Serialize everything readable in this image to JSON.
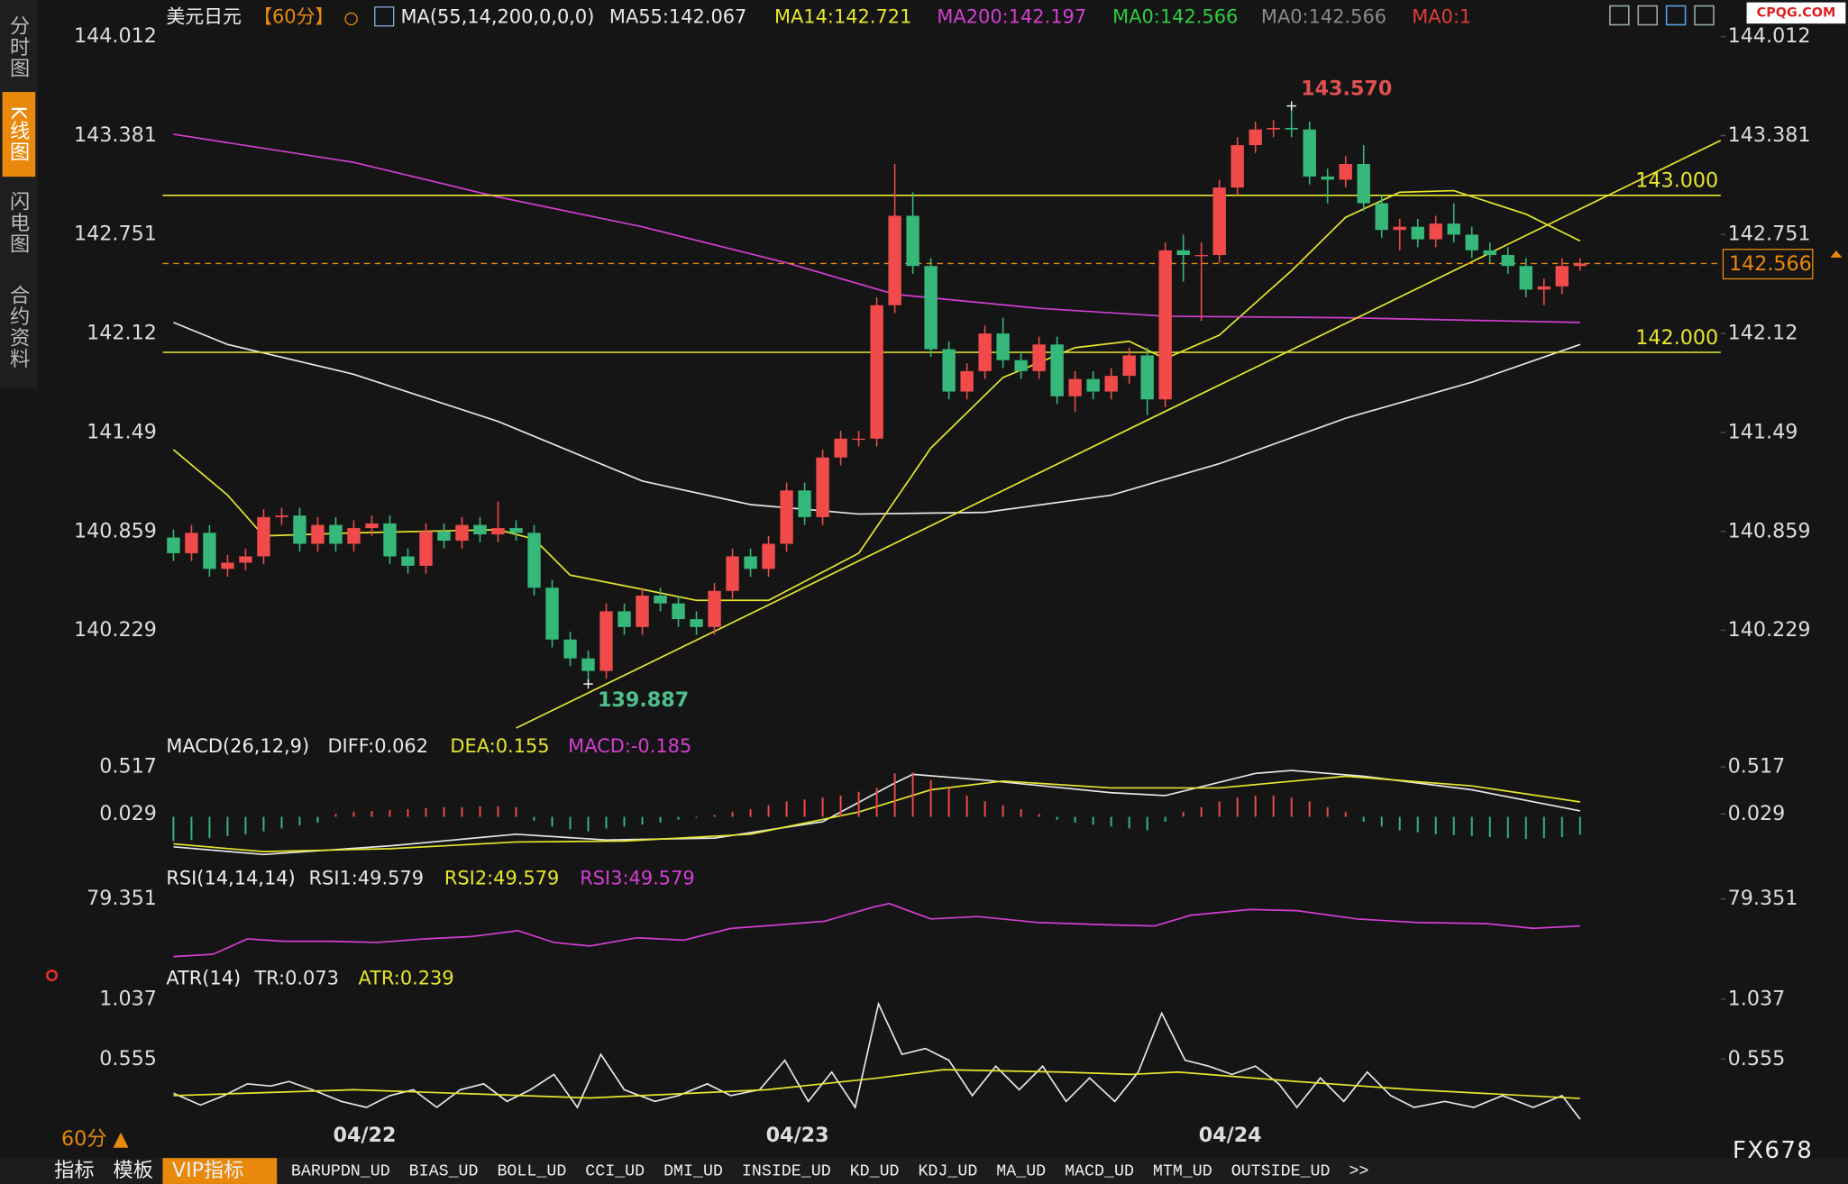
{
  "sidebar": [
    "分时图",
    "K线图",
    "闪电图",
    "合约资料"
  ],
  "header": {
    "symbol": "美元日元",
    "period": "【60分】",
    "indicator": "MA(55,14,200,0,0,0)",
    "logo": "CPQG.COM"
  },
  "chart_data": [
    {
      "type": "candlestick",
      "up_color": "#f04a4a",
      "down_color": "#35b87a",
      "open": [
        140.82,
        140.72,
        140.85,
        140.62,
        140.66,
        140.7,
        140.95,
        140.96,
        140.78,
        140.9,
        140.78,
        140.88,
        140.91,
        140.7,
        140.64,
        140.86,
        140.8,
        140.9,
        140.84,
        140.88,
        140.85,
        140.5,
        140.17,
        140.05,
        139.97,
        140.35,
        140.25,
        140.45,
        140.4,
        140.3,
        140.25,
        140.48,
        140.7,
        140.62,
        140.78,
        141.12,
        140.95,
        141.33,
        141.45,
        141.45,
        142.3,
        142.87,
        142.55,
        142.02,
        141.75,
        141.88,
        142.12,
        141.95,
        141.88,
        142.05,
        141.72,
        141.83,
        141.75,
        141.85,
        141.98,
        141.7,
        142.65,
        142.62,
        142.62,
        143.05,
        143.32,
        143.42,
        143.43,
        143.42,
        143.12,
        143.1,
        143.2,
        142.95,
        142.78,
        142.8,
        142.72,
        142.82,
        142.75,
        142.65,
        142.62,
        142.55,
        142.4,
        142.42,
        142.55
      ],
      "high": [
        140.87,
        140.9,
        140.9,
        140.71,
        140.75,
        141.0,
        141.01,
        141.01,
        140.95,
        140.95,
        140.93,
        140.96,
        140.96,
        140.75,
        140.91,
        140.91,
        140.95,
        140.95,
        141.05,
        140.93,
        140.9,
        140.55,
        140.22,
        140.1,
        140.4,
        140.4,
        140.5,
        140.5,
        140.45,
        140.35,
        140.53,
        140.75,
        140.75,
        140.83,
        141.17,
        141.17,
        141.38,
        141.5,
        141.5,
        142.35,
        143.2,
        143.02,
        142.6,
        142.07,
        141.93,
        142.17,
        142.22,
        142.0,
        142.1,
        142.1,
        141.88,
        141.88,
        141.9,
        142.03,
        142.03,
        142.7,
        142.75,
        142.7,
        143.1,
        143.37,
        143.47,
        143.48,
        143.57,
        143.47,
        143.17,
        143.25,
        143.32,
        143.0,
        142.85,
        142.85,
        142.87,
        142.95,
        142.8,
        142.7,
        142.67,
        142.6,
        142.47,
        142.6,
        142.6
      ],
      "low": [
        140.67,
        140.67,
        140.57,
        140.57,
        140.61,
        140.65,
        140.9,
        140.73,
        140.73,
        140.73,
        140.73,
        140.83,
        140.65,
        140.59,
        140.59,
        140.75,
        140.75,
        140.79,
        140.79,
        140.8,
        140.45,
        140.12,
        140.0,
        139.887,
        139.92,
        140.2,
        140.2,
        140.35,
        140.25,
        140.2,
        140.2,
        140.43,
        140.57,
        140.57,
        140.73,
        140.9,
        140.9,
        141.28,
        141.4,
        141.4,
        142.25,
        142.5,
        141.97,
        141.7,
        141.7,
        141.83,
        141.9,
        141.83,
        141.83,
        141.67,
        141.62,
        141.7,
        141.7,
        141.8,
        141.6,
        141.65,
        142.45,
        142.2,
        142.57,
        143.0,
        143.27,
        143.37,
        143.37,
        143.07,
        142.95,
        143.05,
        142.9,
        142.73,
        142.65,
        142.67,
        142.67,
        142.7,
        142.6,
        142.57,
        142.5,
        142.35,
        142.3,
        142.37,
        142.52
      ],
      "close": [
        140.72,
        140.85,
        140.62,
        140.66,
        140.7,
        140.95,
        140.96,
        140.78,
        140.9,
        140.78,
        140.88,
        140.91,
        140.7,
        140.64,
        140.86,
        140.8,
        140.9,
        140.84,
        140.88,
        140.85,
        140.5,
        140.17,
        140.05,
        139.97,
        140.35,
        140.25,
        140.45,
        140.4,
        140.3,
        140.25,
        140.48,
        140.7,
        140.62,
        140.78,
        141.12,
        140.95,
        141.33,
        141.45,
        141.45,
        142.3,
        142.87,
        142.55,
        142.02,
        141.75,
        141.88,
        142.12,
        141.95,
        141.88,
        142.05,
        141.72,
        141.83,
        141.75,
        141.85,
        141.98,
        141.7,
        142.65,
        142.62,
        142.62,
        143.05,
        143.32,
        143.42,
        143.43,
        143.42,
        143.12,
        143.1,
        143.2,
        142.95,
        142.78,
        142.8,
        142.72,
        142.82,
        142.75,
        142.65,
        142.62,
        142.55,
        142.4,
        142.42,
        142.55,
        142.566
      ],
      "xlim": [
        -0.6,
        85.8
      ],
      "ylim": [
        139.591,
        144.057
      ],
      "yticks": [
        144.012,
        143.381,
        142.751,
        142.12,
        141.49,
        140.859,
        140.229
      ],
      "xticks": [
        {
          "value": 10.6,
          "label": "04/22"
        },
        {
          "value": 34.6,
          "label": "04/23"
        },
        {
          "value": 58.6,
          "label": "04/24"
        }
      ],
      "series": [
        {
          "name": "MA55:142.067",
          "color": "#e6e6e6",
          "x": [
            0,
            3,
            10,
            18,
            26,
            32,
            38,
            45,
            52,
            58,
            65,
            72,
            78
          ],
          "values": [
            142.19,
            142.05,
            141.86,
            141.56,
            141.18,
            141.03,
            140.97,
            140.98,
            141.09,
            141.29,
            141.58,
            141.81,
            142.05
          ]
        },
        {
          "name": "MA14:142.721",
          "color": "#e6e62e",
          "x": [
            0,
            3,
            5,
            10,
            18,
            20,
            22,
            26,
            29,
            33,
            38,
            42,
            46,
            50,
            53,
            55,
            58,
            62,
            65,
            68,
            71,
            75,
            78
          ],
          "values": [
            141.38,
            141.09,
            140.83,
            140.85,
            140.87,
            140.81,
            140.58,
            140.49,
            140.42,
            140.42,
            140.72,
            141.39,
            141.84,
            142.03,
            142.07,
            141.96,
            142.11,
            142.52,
            142.86,
            143.02,
            143.03,
            142.88,
            142.71
          ]
        },
        {
          "name": "MA200:142.197",
          "color": "#d23fd2",
          "x": [
            0,
            10,
            18,
            26,
            34,
            40,
            48,
            55,
            65,
            78
          ],
          "values": [
            143.39,
            143.21,
            142.99,
            142.8,
            142.57,
            142.37,
            142.28,
            142.23,
            142.22,
            142.19
          ]
        }
      ],
      "other_legend": [
        {
          "name": "MA0:142.566",
          "color": "#2ecc40"
        },
        {
          "name": "MA0:142.566",
          "color": "#8a8a8a"
        },
        {
          "name": "MA0:1",
          "color": "#e03c3c"
        }
      ],
      "hlines": [
        {
          "value": 143,
          "label": "143.000",
          "color": "#e6e62e"
        },
        {
          "value": 142,
          "label": "142.000",
          "color": "#e6e62e"
        }
      ],
      "last_price": 142.566,
      "trendline": {
        "x": [
          19.0,
          85.8
        ],
        "values": [
          139.606,
          143.35
        ],
        "color": "#e6e62e"
      },
      "annotations": [
        {
          "x": 62,
          "value": 143.57,
          "label": "143.570",
          "color": "#e05050"
        },
        {
          "x": 23,
          "value": 139.887,
          "color": "#4fc08d"
        }
      ]
    },
    {
      "type": "macd",
      "title": "MACD(26,12,9)",
      "ylim": [
        -0.447,
        0.651
      ],
      "yticks": [
        0.517,
        0.029
      ],
      "up_color": "#f04a4a",
      "down_color": "#35b87a",
      "series": [
        {
          "name": "DIFF:0.062",
          "color": "#e6e6e6",
          "x": [
            0,
            5,
            12,
            19,
            24,
            30,
            36,
            40,
            41,
            45,
            52,
            55,
            60,
            62,
            66,
            72,
            78
          ],
          "values": [
            -0.31,
            -0.39,
            -0.3,
            -0.18,
            -0.24,
            -0.22,
            -0.05,
            0.35,
            0.44,
            0.38,
            0.25,
            0.22,
            0.45,
            0.48,
            0.42,
            0.28,
            0.062
          ]
        },
        {
          "name": "DEA:0.155",
          "color": "#e6e62e",
          "x": [
            0,
            5,
            12,
            19,
            25,
            32,
            38,
            42,
            46,
            52,
            58,
            65,
            72,
            78
          ],
          "values": [
            -0.28,
            -0.36,
            -0.33,
            -0.26,
            -0.25,
            -0.18,
            0.05,
            0.28,
            0.37,
            0.3,
            0.3,
            0.42,
            0.32,
            0.155
          ]
        },
        {
          "name": "MACD:-0.185",
          "color": "#d23fd2",
          "values": [
            -0.25,
            -0.24,
            -0.22,
            -0.2,
            -0.18,
            -0.15,
            -0.12,
            -0.09,
            -0.06,
            0.03,
            0.05,
            0.06,
            0.07,
            0.08,
            0.09,
            0.1,
            0.1,
            0.11,
            0.11,
            0.1,
            -0.04,
            -0.1,
            -0.13,
            -0.15,
            -0.12,
            -0.1,
            -0.08,
            -0.06,
            -0.03,
            -0.01,
            0.02,
            0.05,
            0.08,
            0.12,
            0.16,
            0.18,
            0.2,
            0.22,
            0.26,
            0.3,
            0.45,
            0.46,
            0.38,
            0.3,
            0.22,
            0.16,
            0.12,
            0.08,
            0.03,
            -0.03,
            -0.06,
            -0.08,
            -0.1,
            -0.12,
            -0.14,
            -0.05,
            0.05,
            0.1,
            0.16,
            0.2,
            0.22,
            0.22,
            0.2,
            0.16,
            0.1,
            0.05,
            -0.05,
            -0.1,
            -0.14,
            -0.16,
            -0.18,
            -0.19,
            -0.2,
            -0.21,
            -0.22,
            -0.23,
            -0.22,
            -0.21,
            -0.185
          ]
        }
      ]
    },
    {
      "type": "line",
      "title": "RSI(14,14,14)",
      "ylim": [
        5.59,
        89.7
      ],
      "yticks": [
        79.351
      ],
      "series": [
        {
          "name": "RSI1:49.579",
          "color": "#e6e6e6"
        },
        {
          "name": "RSI2:49.579",
          "color": "#e6e62e"
        },
        {
          "name": "RSI3:49.579",
          "color": "#d23fd2",
          "x": [
            0,
            2.2,
            4.1,
            6.1,
            8.7,
            11.3,
            13.9,
            16.5,
            19.1,
            21.1,
            23.1,
            25.7,
            28.3,
            30.9,
            33.5,
            36.1,
            38.8,
            39.7,
            42.0,
            44.6,
            47.9,
            51.8,
            54.4,
            56.4,
            59.7,
            62.3,
            65.6,
            68.9,
            72.8,
            75.4,
            78
          ],
          "values": [
            15.9,
            18.5,
            35.3,
            32.8,
            32.8,
            31.5,
            35.3,
            37.9,
            44.4,
            31.5,
            27.6,
            36.6,
            34.0,
            46.9,
            50.8,
            54.7,
            70.3,
            74.2,
            57.4,
            60.0,
            53.5,
            50.9,
            49.6,
            61.3,
            67.7,
            66.4,
            57.4,
            53.5,
            52.2,
            47.0,
            49.579
          ]
        }
      ]
    },
    {
      "type": "line",
      "title": "ATR(14)",
      "ylim": [
        -0.022,
        1.132
      ],
      "yticks": [
        1.037,
        0.555
      ],
      "series": [
        {
          "name": "TR:0.073",
          "color": "#e6e6e6",
          "x": [
            0,
            1.5,
            2.8,
            4.1,
            5.4,
            6.4,
            7.7,
            9.3,
            10.7,
            12.0,
            13.3,
            14.6,
            15.9,
            17.2,
            18.5,
            19.8,
            21.1,
            22.4,
            23.7,
            25.0,
            26.7,
            28.0,
            29.6,
            30.9,
            32.5,
            33.9,
            35.2,
            36.5,
            37.8,
            39.1,
            40.4,
            41.7,
            43.0,
            44.3,
            45.6,
            46.9,
            48.2,
            49.5,
            50.8,
            52.2,
            53.5,
            54.8,
            56.1,
            57.4,
            58.7,
            60.0,
            61.3,
            62.3,
            63.6,
            64.9,
            66.2,
            67.5,
            68.8,
            70.5,
            72.1,
            73.7,
            75.4,
            77.0,
            78
          ],
          "values": [
            0.281,
            0.186,
            0.262,
            0.356,
            0.338,
            0.375,
            0.309,
            0.215,
            0.167,
            0.262,
            0.309,
            0.167,
            0.309,
            0.356,
            0.215,
            0.309,
            0.432,
            0.167,
            0.593,
            0.309,
            0.215,
            0.262,
            0.356,
            0.262,
            0.309,
            0.546,
            0.215,
            0.451,
            0.167,
            0.999,
            0.593,
            0.64,
            0.546,
            0.262,
            0.498,
            0.309,
            0.498,
            0.215,
            0.404,
            0.215,
            0.451,
            0.924,
            0.546,
            0.498,
            0.432,
            0.498,
            0.356,
            0.167,
            0.404,
            0.215,
            0.451,
            0.262,
            0.167,
            0.215,
            0.167,
            0.262,
            0.167,
            0.262,
            0.073
          ]
        },
        {
          "name": "ATR:0.239",
          "color": "#e6e62e",
          "x": [
            0,
            10,
            23.1,
            32.9,
            39.1,
            42.7,
            49.2,
            53.1,
            55.7,
            62.3,
            68.8,
            78
          ],
          "values": [
            0.262,
            0.309,
            0.243,
            0.309,
            0.404,
            0.47,
            0.451,
            0.432,
            0.451,
            0.375,
            0.309,
            0.239
          ]
        }
      ]
    }
  ],
  "footer": {
    "period": "60分 ▲",
    "tabs": [
      "指标",
      "模板",
      "VIP指标",
      "BARUPDN_UD",
      "BIAS_UD",
      "BOLL_UD",
      "CCI_UD",
      "DMI_UD",
      "INSIDE_UD",
      "KD_UD",
      "KDJ_UD",
      "MA_UD",
      "MACD_UD",
      "MTM_UD",
      "OUTSIDE_UD",
      ">>"
    ],
    "brand": "FX678"
  }
}
